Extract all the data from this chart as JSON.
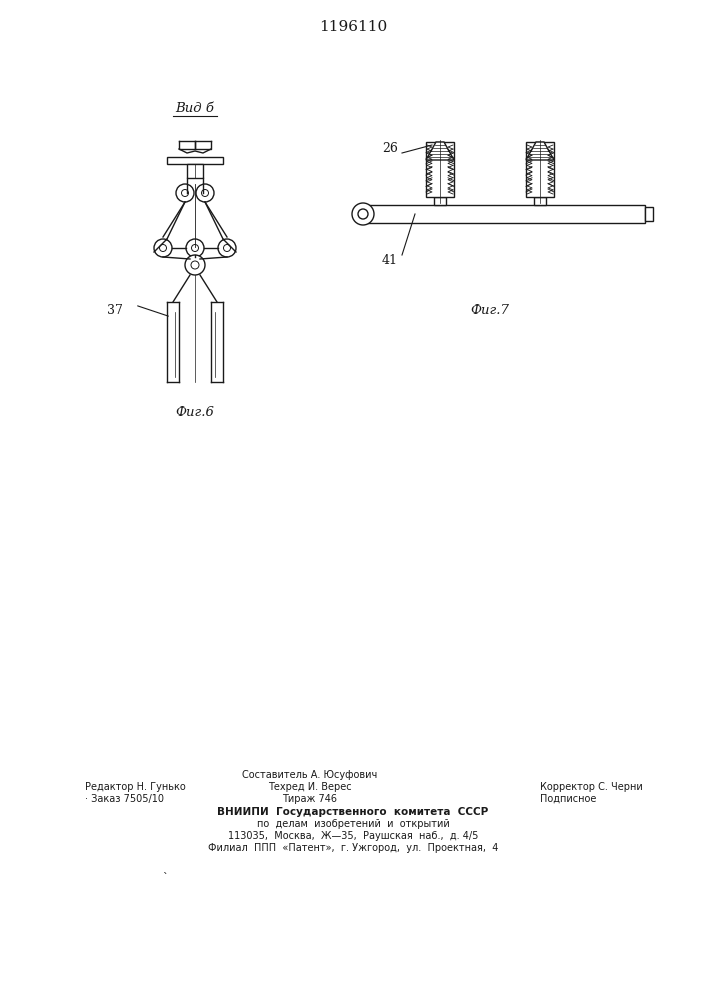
{
  "title": "1196110",
  "title_fontsize": 11,
  "bg_color": "#ffffff",
  "fig6_label": "Фиг.6",
  "fig7_label": "Фиг.7",
  "vid_b_label": "Вид б",
  "label_37": "37",
  "label_26": "26",
  "label_41": "41",
  "footer_col1_line1": "Редактор Н. Гунько",
  "footer_col1_line2": "· Заказ 7505/10",
  "footer_col2_line1": "Составитель А. Юсуфович",
  "footer_col2_line2": "Техред И. Верес",
  "footer_col2_line3": "Тираж 746",
  "footer_col3_line1": "Корректор С. Черни",
  "footer_col3_line2": "Подписное",
  "footer_vniiipi_1": "ВНИИПИ  Государственного  комитета  СССР",
  "footer_vniiipi_2": "по  делам  изобретений  и  открытий",
  "footer_vniiipi_3": "113035,  Москва,  Ж—35,  Раушская  наб.,  д. 4/5",
  "footer_vniiipi_4": "Филиал  ППП  «Патент»,  г. Ужгород,  ул.  Проектная,  4"
}
